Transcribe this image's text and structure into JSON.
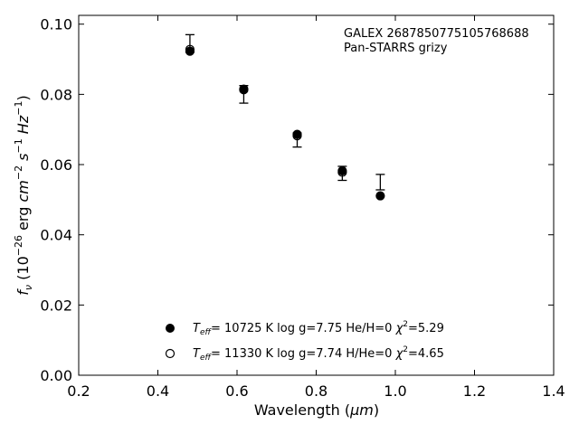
{
  "chart_data": {
    "type": "scatter",
    "annotation": [
      "GALEX 2687850775105768688",
      "Pan-STARRS grizy"
    ],
    "xlabel": {
      "main": "Wavelength (",
      "unit": "μm",
      "close": ")"
    },
    "ylabel": {
      "f": "f",
      "f_sub": "ν",
      "p1": " (10",
      "exp1": "−26",
      "p2": " erg ",
      "cm": "cm",
      "exp2": "−2",
      "s": " s",
      "exp3": "−1",
      "hz": " Hz",
      "exp4": "−1",
      "close": ")"
    },
    "xlim": [
      0.2,
      1.4
    ],
    "ylim": [
      0.0,
      0.1025
    ],
    "xticks": [
      "0.2",
      "0.4",
      "0.6",
      "0.8",
      "1.0",
      "1.2",
      "1.4"
    ],
    "yticks": [
      "0.00",
      "0.02",
      "0.04",
      "0.06",
      "0.08",
      "0.10"
    ],
    "observed": {
      "x": [
        0.481,
        0.617,
        0.752,
        0.866,
        0.962
      ],
      "y": [
        0.0945,
        0.08,
        0.067,
        0.0575,
        0.055
      ],
      "err": [
        0.0025,
        0.0025,
        0.002,
        0.002,
        0.0022
      ]
    },
    "series": [
      {
        "marker": "filled",
        "x": [
          0.481,
          0.617,
          0.752,
          0.866,
          0.962
        ],
        "y": [
          0.0923,
          0.0813,
          0.0686,
          0.0582,
          0.0511
        ]
      },
      {
        "marker": "open",
        "x": [
          0.481,
          0.617,
          0.752,
          0.866
        ],
        "y": [
          0.0928,
          0.0815,
          0.0682,
          0.0578
        ]
      }
    ],
    "legend": [
      {
        "marker": "filled",
        "T": "T",
        "T_sub": "eff",
        "text": "= 10725 K  log g=7.75  He/H=0  ",
        "chi": "χ",
        "chi_exp": "2",
        "chi_val": "=5.29"
      },
      {
        "marker": "open",
        "T": "T",
        "T_sub": "eff",
        "text": "= 11330 K  log g=7.74  H/He=0  ",
        "chi": "χ",
        "chi_exp": "2",
        "chi_val": "=4.65"
      }
    ],
    "legend_position": "bottom-center",
    "grid": false,
    "colors": {
      "marker": "#000000",
      "axes": "#000000",
      "background": "#ffffff"
    }
  }
}
